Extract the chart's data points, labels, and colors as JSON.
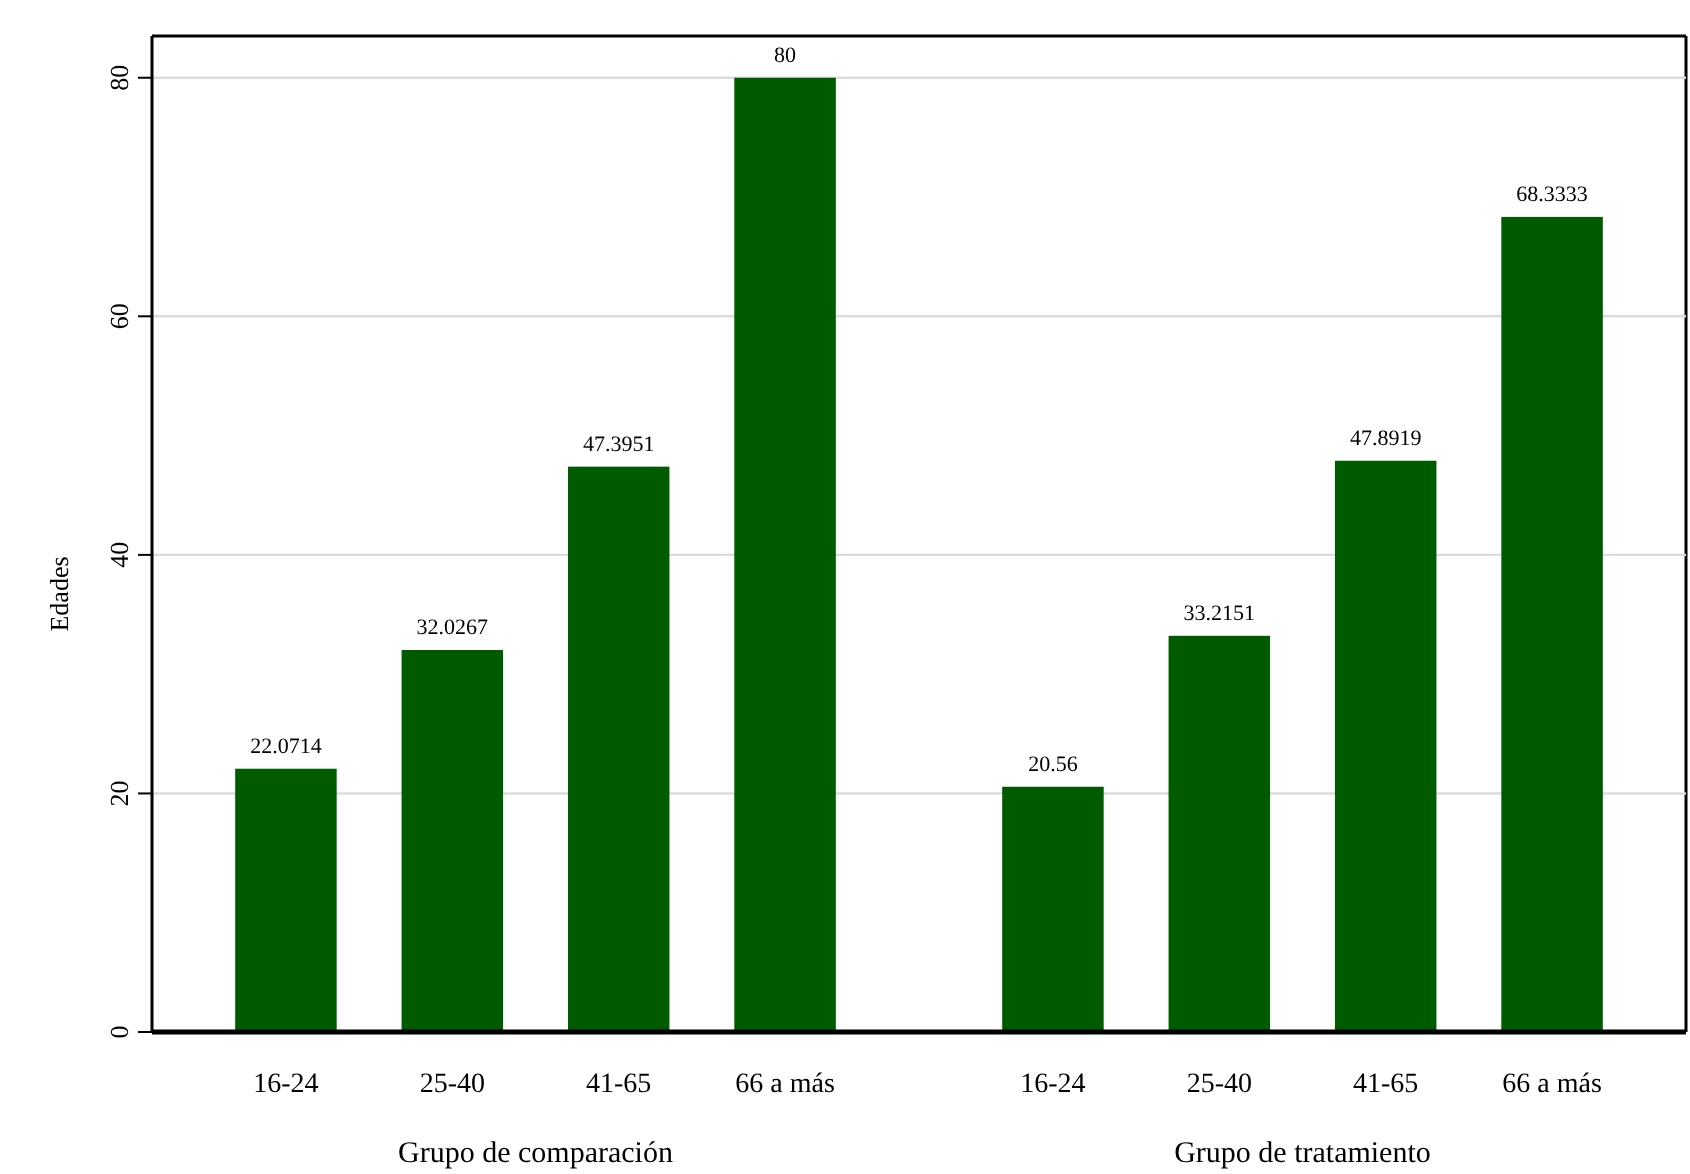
{
  "chart_data": [
    {
      "type": "bar",
      "xlabel": "Grupo de comparación",
      "ylabel": "Edades",
      "categories": [
        "16-24",
        "25-40",
        "41-65",
        "66 a más"
      ],
      "values": [
        22.0714,
        32.0267,
        47.3951,
        80
      ],
      "color": "#005a00",
      "ylim": [
        0,
        83.5
      ],
      "yticks": [
        0,
        20,
        40,
        60,
        80
      ],
      "grid": true,
      "data_labels": true
    },
    {
      "type": "bar",
      "xlabel": "Grupo de tratamiento",
      "categories": [
        "16-24",
        "25-40",
        "41-65",
        "66 a más"
      ],
      "values": [
        20.56,
        33.2151,
        47.8919,
        68.3333
      ],
      "color": "#005a00",
      "ylim": [
        0,
        83.5
      ],
      "yticks": [
        0,
        20,
        40,
        60,
        80
      ],
      "grid": true,
      "data_labels": true,
      "tick_labels": "x"
    }
  ]
}
